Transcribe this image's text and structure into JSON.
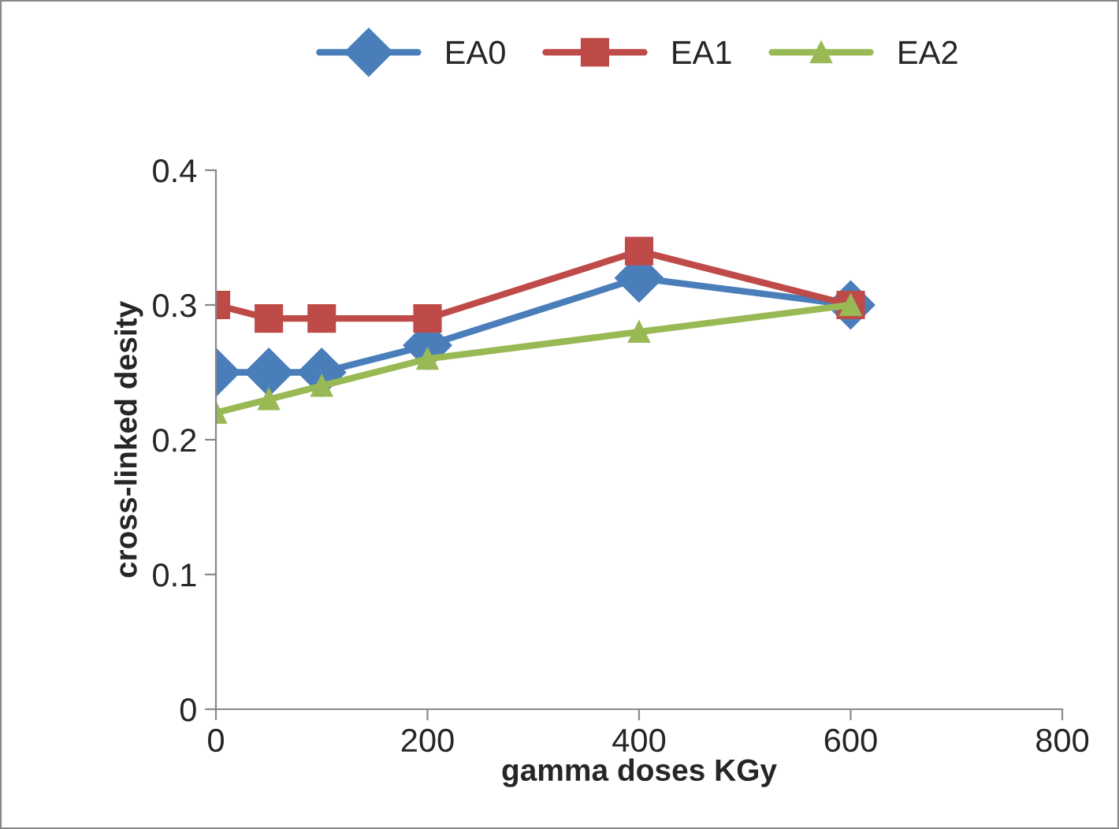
{
  "chart_data": {
    "type": "line",
    "xlabel": "gamma doses KGy",
    "ylabel": "cross-linked desity",
    "x": [
      0,
      50,
      100,
      200,
      400,
      600
    ],
    "series": [
      {
        "name": "EA0",
        "color": "#4a7ebb",
        "marker": "diamond",
        "values": [
          0.25,
          0.25,
          0.25,
          0.27,
          0.32,
          0.3
        ]
      },
      {
        "name": "EA1",
        "color": "#be4b48",
        "marker": "square",
        "values": [
          0.3,
          0.29,
          0.29,
          0.29,
          0.34,
          0.3
        ]
      },
      {
        "name": "EA2",
        "color": "#98b954",
        "marker": "triangle",
        "values": [
          0.22,
          0.23,
          0.24,
          0.26,
          0.28,
          0.3
        ]
      }
    ],
    "xlim": [
      0,
      800
    ],
    "xticks": [
      0,
      200,
      400,
      600,
      800
    ],
    "ylim": [
      0,
      0.4
    ],
    "yticks": [
      0,
      0.1,
      0.2,
      0.3,
      0.4
    ],
    "grid": false,
    "legend": "top",
    "line_style": "solid"
  }
}
